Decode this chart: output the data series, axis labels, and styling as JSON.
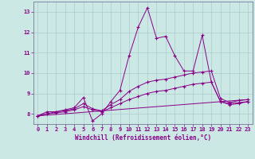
{
  "xlabel": "Windchill (Refroidissement éolien,°C)",
  "bg_color": "#cce8e4",
  "line_color": "#880088",
  "grid_color": "#aacccc",
  "xlim": [
    -0.5,
    23.5
  ],
  "ylim": [
    7.5,
    13.5
  ],
  "yticks": [
    8,
    9,
    10,
    11,
    12,
    13
  ],
  "xticks": [
    0,
    1,
    2,
    3,
    4,
    5,
    6,
    7,
    8,
    9,
    10,
    11,
    12,
    13,
    14,
    15,
    16,
    17,
    18,
    19,
    20,
    21,
    22,
    23
  ],
  "series": [
    {
      "x": [
        0,
        1,
        2,
        3,
        4,
        5,
        6,
        7,
        8,
        9,
        10,
        11,
        12,
        13,
        14,
        15,
        16,
        17,
        18,
        19,
        20,
        21,
        22,
        23
      ],
      "y": [
        7.9,
        8.1,
        8.1,
        8.2,
        8.3,
        8.8,
        7.65,
        8.0,
        8.6,
        9.15,
        10.85,
        12.25,
        13.2,
        11.7,
        11.8,
        10.85,
        10.1,
        10.1,
        11.85,
        9.55,
        8.6,
        8.5,
        8.55,
        8.6
      ]
    },
    {
      "x": [
        0,
        1,
        2,
        3,
        4,
        5,
        6,
        7,
        8,
        9,
        10,
        11,
        12,
        13,
        14,
        15,
        16,
        17,
        18,
        19,
        20,
        21,
        22,
        23
      ],
      "y": [
        7.9,
        8.0,
        8.1,
        8.15,
        8.25,
        8.5,
        8.25,
        8.15,
        8.45,
        8.7,
        9.1,
        9.35,
        9.55,
        9.65,
        9.7,
        9.8,
        9.9,
        10.0,
        10.05,
        10.1,
        8.75,
        8.55,
        8.65,
        8.7
      ]
    },
    {
      "x": [
        0,
        1,
        2,
        3,
        4,
        5,
        6,
        7,
        8,
        9,
        10,
        11,
        12,
        13,
        14,
        15,
        16,
        17,
        18,
        19,
        20,
        21,
        22,
        23
      ],
      "y": [
        7.9,
        8.0,
        8.05,
        8.1,
        8.2,
        8.35,
        8.2,
        8.1,
        8.3,
        8.5,
        8.7,
        8.85,
        9.0,
        9.1,
        9.15,
        9.25,
        9.35,
        9.45,
        9.5,
        9.55,
        8.6,
        8.45,
        8.5,
        8.6
      ]
    },
    {
      "x": [
        0,
        23
      ],
      "y": [
        7.9,
        8.7
      ]
    }
  ]
}
